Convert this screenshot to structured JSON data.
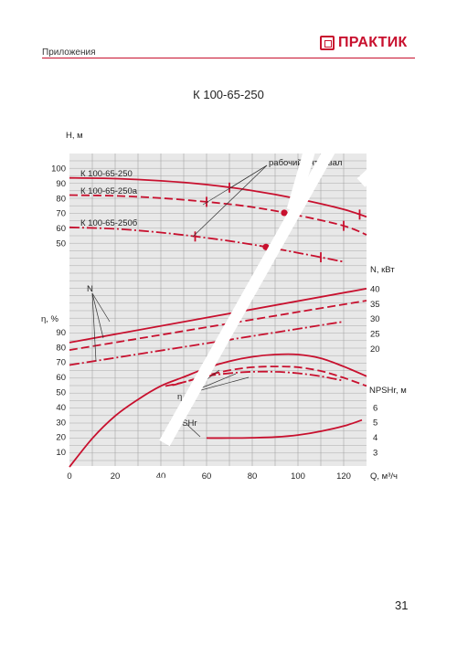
{
  "header": {
    "section": "Приложения",
    "brand": "ПРАКТИК"
  },
  "title": "К 100-65-250",
  "page_number": "31",
  "colors": {
    "curve": "#c8102e",
    "grid": "#9a9a9a",
    "panel": "#e8e8e8"
  },
  "chart_data": {
    "type": "line",
    "xlabel": "Q, м³/ч",
    "xlim": [
      0,
      130
    ],
    "x_ticks": [
      "0",
      "20",
      "40",
      "60",
      "80",
      "100",
      "120"
    ],
    "axes": {
      "head": {
        "label": "Н, м",
        "ticks": [
          "100",
          "90",
          "80",
          "70",
          "60",
          "50"
        ],
        "range": [
          50,
          100
        ]
      },
      "eff": {
        "label": "η, %",
        "ticks": [
          "90",
          "80",
          "70",
          "60",
          "50",
          "40",
          "30",
          "20",
          "10"
        ],
        "range": [
          0,
          95
        ]
      },
      "power": {
        "label": "N, кВт",
        "ticks": [
          "40",
          "35",
          "30",
          "25",
          "20"
        ],
        "range": [
          20,
          40
        ]
      },
      "npsh": {
        "label": "NPSHr, м",
        "ticks": [
          "6",
          "5",
          "4",
          "3"
        ],
        "range": [
          3,
          6
        ]
      }
    },
    "annotations": {
      "working_range": "рабочий интервал",
      "n_label": "N",
      "eta_label": "η",
      "npsh_label": "NPSHr"
    },
    "series": [
      {
        "name": "К 100-65-250",
        "axis": "head",
        "style": "solid",
        "x": [
          0,
          20,
          40,
          60,
          80,
          100,
          120,
          130
        ],
        "y": [
          93.5,
          93,
          91.5,
          89,
          85,
          79.5,
          72.5,
          67.5
        ],
        "range_marks": [
          70,
          127
        ],
        "bep": 100
      },
      {
        "name": "К 100-65-250а",
        "axis": "head",
        "style": "dashed",
        "x": [
          0,
          20,
          40,
          60,
          80,
          100,
          120,
          130
        ],
        "y": [
          82,
          81.5,
          80,
          77.5,
          74,
          68.5,
          61.5,
          55.5
        ],
        "range_marks": [
          60,
          120
        ],
        "bep": 94
      },
      {
        "name": "К 100-65-250б",
        "axis": "head",
        "style": "dashdot",
        "x": [
          0,
          20,
          40,
          60,
          80,
          100,
          120
        ],
        "y": [
          60.5,
          59.5,
          57,
          53.5,
          49,
          43.5,
          37.5
        ],
        "range_marks": [
          55,
          110
        ],
        "bep": 86
      },
      {
        "axis": "power",
        "style": "solid",
        "x": [
          0,
          130
        ],
        "y": [
          22,
          40
        ]
      },
      {
        "axis": "power",
        "style": "dashed",
        "x": [
          0,
          130
        ],
        "y": [
          19.5,
          36
        ]
      },
      {
        "axis": "power",
        "style": "dashdot",
        "x": [
          0,
          120
        ],
        "y": [
          14.5,
          29
        ]
      },
      {
        "axis": "eff",
        "style": "solid",
        "x": [
          0,
          10,
          20,
          30,
          40,
          50,
          60,
          70,
          80,
          90,
          100,
          110,
          120,
          130
        ],
        "y": [
          0,
          19,
          34,
          45,
          54,
          60,
          66,
          70.5,
          73.5,
          75,
          75,
          72.5,
          67,
          60.5
        ]
      },
      {
        "axis": "eff",
        "style": "dashed",
        "x": [
          42,
          50,
          60,
          70,
          80,
          90,
          100,
          110,
          120,
          130
        ],
        "y": [
          54,
          56.5,
          61,
          64.5,
          66.5,
          67,
          66.5,
          64,
          59.5,
          54
        ]
      },
      {
        "axis": "eff",
        "style": "dashdot",
        "x": [
          45,
          50,
          60,
          70,
          80,
          90,
          100,
          110,
          120
        ],
        "y": [
          54.5,
          56.5,
          60.5,
          62.5,
          63.5,
          63.5,
          62.5,
          60.5,
          57.5
        ]
      },
      {
        "axis": "npsh",
        "style": "solid",
        "x": [
          60,
          70,
          80,
          90,
          100,
          110,
          120,
          128
        ],
        "y": [
          3.95,
          3.95,
          3.97,
          4.02,
          4.15,
          4.4,
          4.75,
          5.15
        ]
      }
    ]
  }
}
